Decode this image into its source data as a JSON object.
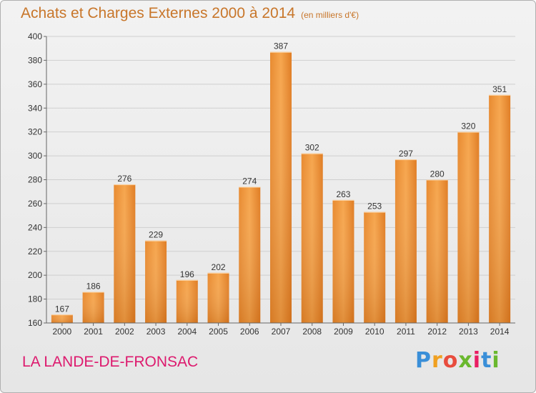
{
  "title": "Achats et Charges Externes 2000 à 2014",
  "unit_note": "(en milliers d'€)",
  "commune": "LA LANDE-DE-FRONSAC",
  "logo_text": "Proxiti",
  "colors": {
    "bar_top": "#f6a64e",
    "bar_bottom": "#d9741c",
    "title": "#c8762a",
    "commune": "#dd1a6e"
  },
  "chart_data": {
    "type": "bar",
    "title": "Achats et Charges Externes 2000 à 2014",
    "subtitle": "(en milliers d'€)",
    "xlabel": "",
    "ylabel": "",
    "categories": [
      "2000",
      "2001",
      "2002",
      "2003",
      "2004",
      "2005",
      "2006",
      "2007",
      "2008",
      "2009",
      "2010",
      "2011",
      "2012",
      "2013",
      "2014"
    ],
    "values": [
      167,
      186,
      276,
      229,
      196,
      202,
      274,
      387,
      302,
      263,
      253,
      297,
      280,
      320,
      351
    ],
    "ylim": [
      160,
      400
    ],
    "yticks": [
      160,
      180,
      200,
      220,
      240,
      260,
      280,
      300,
      320,
      340,
      360,
      380,
      400
    ],
    "grid": true,
    "legend": "none"
  }
}
